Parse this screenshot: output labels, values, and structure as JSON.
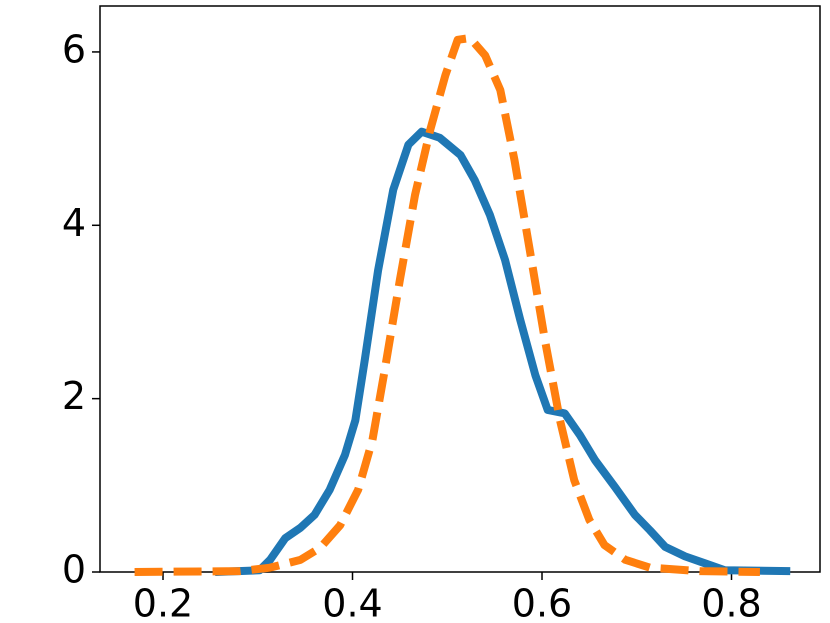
{
  "chart_data": {
    "type": "line",
    "xlim": [
      0.1335,
      0.8934
    ],
    "ylim": [
      0,
      6.53
    ],
    "xticks": [
      0.2,
      0.4,
      0.6,
      0.8
    ],
    "yticks": [
      0,
      2,
      4,
      6
    ],
    "series": [
      {
        "color": "#1f77b4",
        "style": "solid",
        "x": [
          0.255,
          0.302,
          0.313,
          0.329,
          0.345,
          0.36,
          0.376,
          0.392,
          0.403,
          0.413,
          0.427,
          0.443,
          0.459,
          0.473,
          0.492,
          0.514,
          0.529,
          0.545,
          0.561,
          0.577,
          0.593,
          0.606,
          0.624,
          0.64,
          0.656,
          0.677,
          0.698,
          0.714,
          0.73,
          0.751,
          0.772,
          0.793,
          0.862
        ],
        "values": [
          0,
          0.02,
          0.14,
          0.39,
          0.51,
          0.66,
          0.95,
          1.35,
          1.75,
          2.45,
          3.48,
          4.41,
          4.93,
          5.08,
          5.01,
          4.81,
          4.52,
          4.12,
          3.6,
          2.91,
          2.27,
          1.87,
          1.83,
          1.58,
          1.29,
          0.98,
          0.66,
          0.48,
          0.29,
          0.18,
          0.1,
          0.02,
          0.01
        ]
      },
      {
        "color": "#ff7f0e",
        "style": "dashed",
        "x": [
          0.17,
          0.281,
          0.313,
          0.345,
          0.366,
          0.387,
          0.406,
          0.421,
          0.434,
          0.45,
          0.466,
          0.482,
          0.498,
          0.511,
          0.524,
          0.54,
          0.556,
          0.571,
          0.587,
          0.603,
          0.619,
          0.634,
          0.65,
          0.666,
          0.688,
          0.714,
          0.767,
          0.83
        ],
        "values": [
          0,
          0.01,
          0.05,
          0.14,
          0.28,
          0.54,
          0.95,
          1.52,
          2.33,
          3.37,
          4.35,
          5.1,
          5.73,
          6.14,
          6.16,
          5.96,
          5.56,
          4.75,
          3.72,
          2.68,
          1.75,
          1.06,
          0.6,
          0.31,
          0.14,
          0.05,
          0.01,
          0
        ]
      }
    ]
  }
}
